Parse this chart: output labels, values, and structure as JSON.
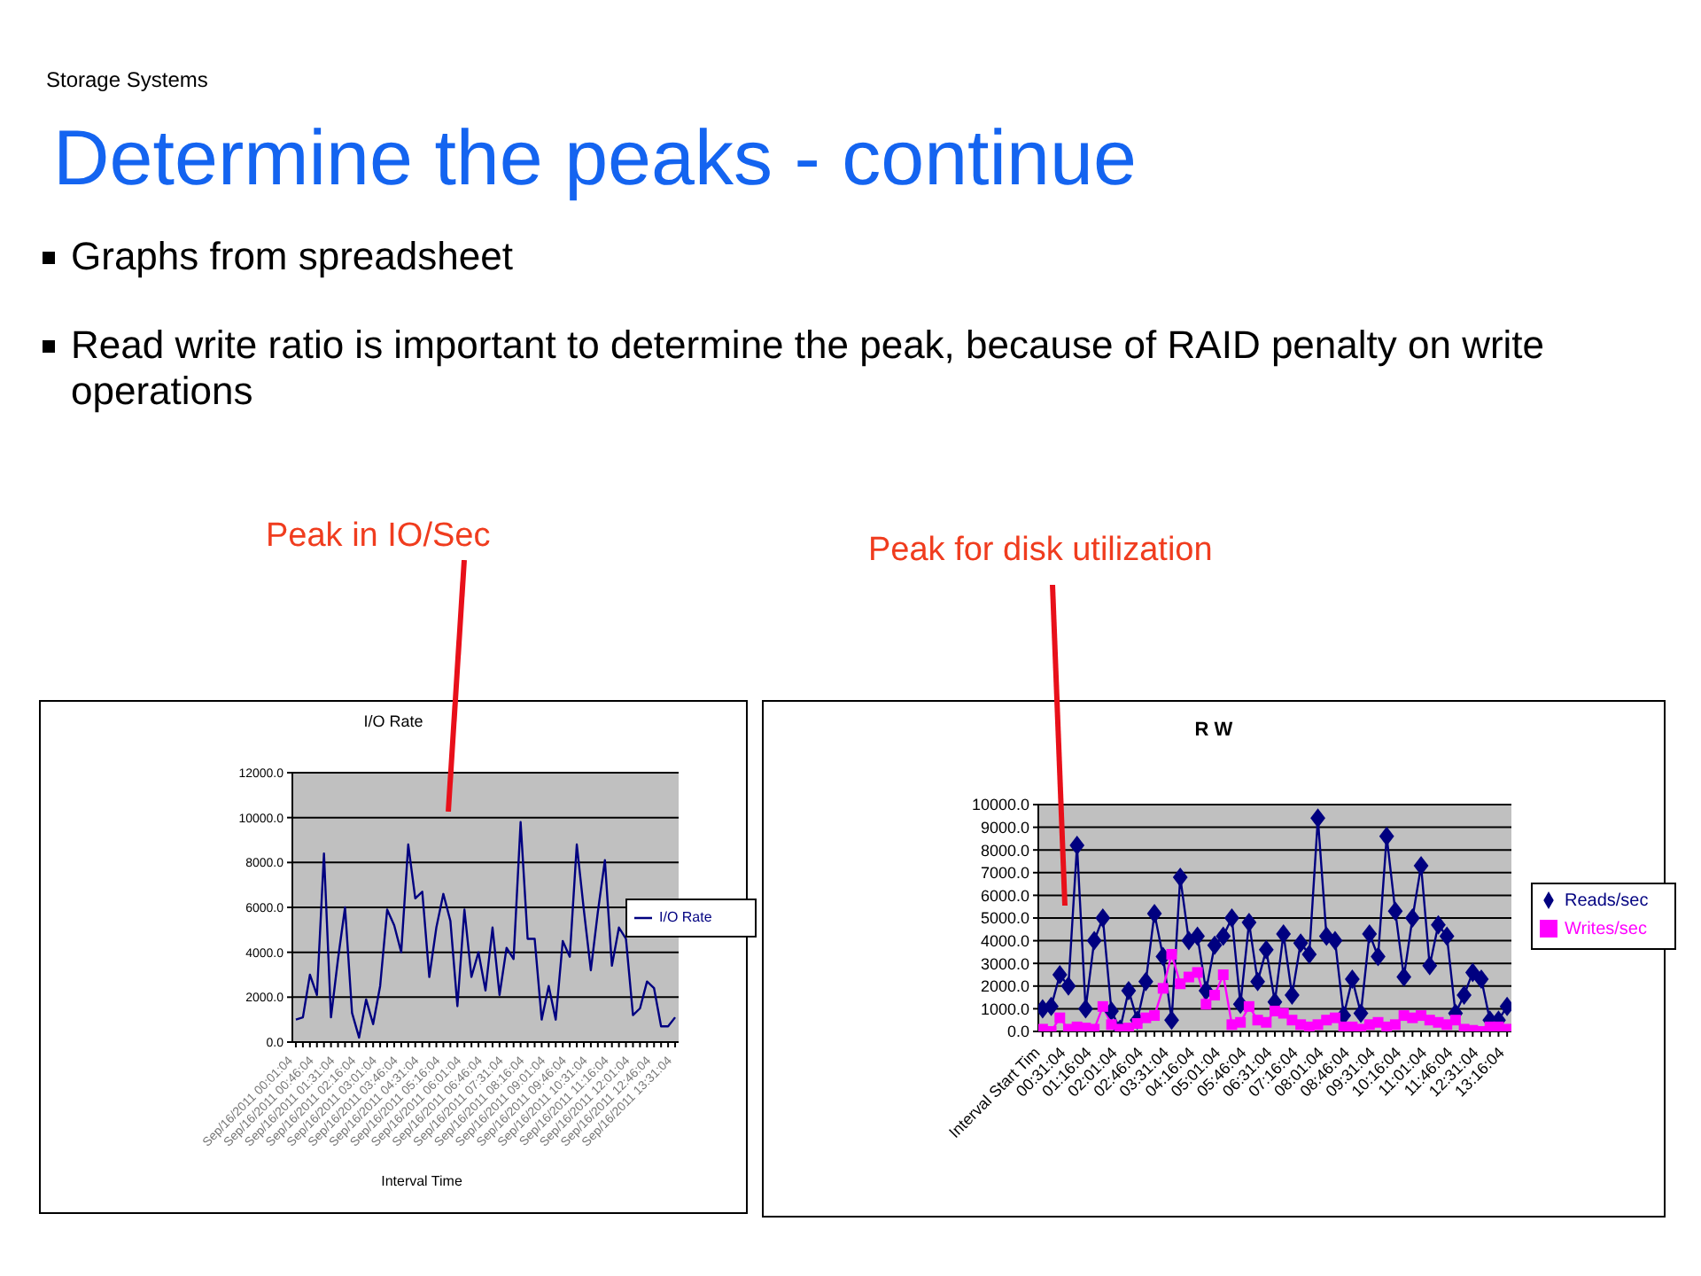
{
  "chart_data": [
    {
      "type": "line",
      "title": "I/O Rate",
      "xlabel": "Interval Time",
      "categories": [
        "Sep/16/2011 00:01:04",
        null,
        null,
        "Sep/16/2011 00:46:04",
        null,
        null,
        "Sep/16/2011 01:31:04",
        null,
        null,
        "Sep/16/2011 02:16:04",
        null,
        null,
        "Sep/16/2011 03:01:04",
        null,
        null,
        "Sep/16/2011 03:46:04",
        null,
        null,
        "Sep/16/2011 04:31:04",
        null,
        null,
        "Sep/16/2011 05:16:04",
        null,
        null,
        "Sep/16/2011 06:01:04",
        null,
        null,
        "Sep/16/2011 06:46:04",
        null,
        null,
        "Sep/16/2011 07:31:04",
        null,
        null,
        "Sep/16/2011 08:16:04",
        null,
        null,
        "Sep/16/2011 09:01:04",
        null,
        null,
        "Sep/16/2011 09:46:04",
        null,
        null,
        "Sep/16/2011 10:31:04",
        null,
        null,
        "Sep/16/2011 11:16:04",
        null,
        null,
        "Sep/16/2011 12:01:04",
        null,
        null,
        "Sep/16/2011 12:46:04",
        null,
        null,
        "Sep/16/2011 13:31:04"
      ],
      "series": [
        {
          "name": "I/O Rate",
          "color": "#000080",
          "values": [
            1000,
            1100,
            3000,
            2100,
            8400,
            1100,
            3700,
            6000,
            1300,
            200,
            1900,
            800,
            2500,
            5900,
            5200,
            4000,
            8800,
            6400,
            6700,
            2900,
            5100,
            6600,
            5400,
            1600,
            5900,
            2900,
            4000,
            2300,
            5100,
            2100,
            4200,
            3700,
            9800,
            4600,
            4600,
            1000,
            2500,
            1000,
            4500,
            3800,
            8800,
            5900,
            3200,
            5800,
            8100,
            3400,
            5100,
            4600,
            1200,
            1500,
            2700,
            2400,
            700,
            700,
            1100
          ]
        }
      ],
      "ylim": [
        0,
        12000
      ],
      "yticks": [
        {
          "value": 0,
          "label": "0.0"
        },
        {
          "value": 2000,
          "label": "2000.0"
        },
        {
          "value": 4000,
          "label": "4000.0"
        },
        {
          "value": 6000,
          "label": "6000.0"
        },
        {
          "value": 8000,
          "label": "8000.0"
        },
        {
          "value": 10000,
          "label": "10000.0"
        },
        {
          "value": 12000,
          "label": "12000.0"
        }
      ],
      "grid": "y",
      "legend": "right",
      "marker": "none",
      "annotations": [
        "Storage Systems",
        "Determine the peaks - continue",
        "Graphs from spreadsheet",
        "Read write ratio is important to determine the peak, because of RAID penalty on write operations",
        "Peak in IO/Sec"
      ]
    },
    {
      "type": "line",
      "title": "R W",
      "categories": [
        "Interval Start Tim",
        null,
        null,
        "00:31:04",
        null,
        null,
        "01:16:04",
        null,
        null,
        "02:01:04",
        null,
        null,
        "02:46:04",
        null,
        null,
        "03:31:04",
        null,
        null,
        "04:16:04",
        null,
        null,
        "05:01:04",
        null,
        null,
        "05:46:04",
        null,
        null,
        "06:31:04",
        null,
        null,
        "07:16:04",
        null,
        null,
        "08:01:04",
        null,
        null,
        "08:46:04",
        null,
        null,
        "09:31:04",
        null,
        null,
        "10:16:04",
        null,
        null,
        "11:01:04",
        null,
        null,
        "11:46:04",
        null,
        null,
        "12:31:04",
        null,
        null,
        "13:16:04"
      ],
      "series": [
        {
          "name": "Reads/sec",
          "color": "#000080",
          "marker": "diamond",
          "values": [
            1000,
            1100,
            2500,
            2000,
            8200,
            1000,
            4000,
            5000,
            900,
            100,
            1800,
            500,
            2200,
            5200,
            3300,
            500,
            6800,
            4000,
            4200,
            1800,
            3800,
            4200,
            5000,
            1200,
            4800,
            2200,
            3600,
            1300,
            4300,
            1600,
            3900,
            3400,
            9400,
            4200,
            4000,
            700,
            2300,
            800,
            4300,
            3300,
            8600,
            5300,
            2400,
            5000,
            7300,
            2900,
            4700,
            4200,
            800,
            1600,
            2600,
            2300,
            500,
            500,
            1100
          ]
        },
        {
          "name": "Writes/sec",
          "color": "#ff00ff",
          "marker": "square",
          "values": [
            100,
            0,
            600,
            100,
            200,
            150,
            100,
            1100,
            300,
            100,
            150,
            350,
            600,
            700,
            1900,
            3400,
            2100,
            2400,
            2600,
            1200,
            1600,
            2500,
            300,
            400,
            1100,
            500,
            400,
            900,
            800,
            500,
            300,
            200,
            300,
            500,
            600,
            200,
            200,
            100,
            300,
            400,
            200,
            300,
            700,
            600,
            700,
            500,
            400,
            300,
            500,
            100,
            50,
            0,
            200,
            200,
            100
          ]
        }
      ],
      "ylim": [
        0,
        10000
      ],
      "yticks": [
        {
          "value": 0,
          "label": "0.0"
        },
        {
          "value": 1000,
          "label": "1000.0"
        },
        {
          "value": 2000,
          "label": "2000.0"
        },
        {
          "value": 3000,
          "label": "3000.0"
        },
        {
          "value": 4000,
          "label": "4000.0"
        },
        {
          "value": 5000,
          "label": "5000.0"
        },
        {
          "value": 6000,
          "label": "6000.0"
        },
        {
          "value": 7000,
          "label": "7000.0"
        },
        {
          "value": 8000,
          "label": "8000.0"
        },
        {
          "value": 9000,
          "label": "9000.0"
        },
        {
          "value": 10000,
          "label": "10000.0"
        }
      ],
      "grid": "y",
      "legend": "right",
      "annotations": [
        "Peak for disk utilization"
      ]
    }
  ]
}
